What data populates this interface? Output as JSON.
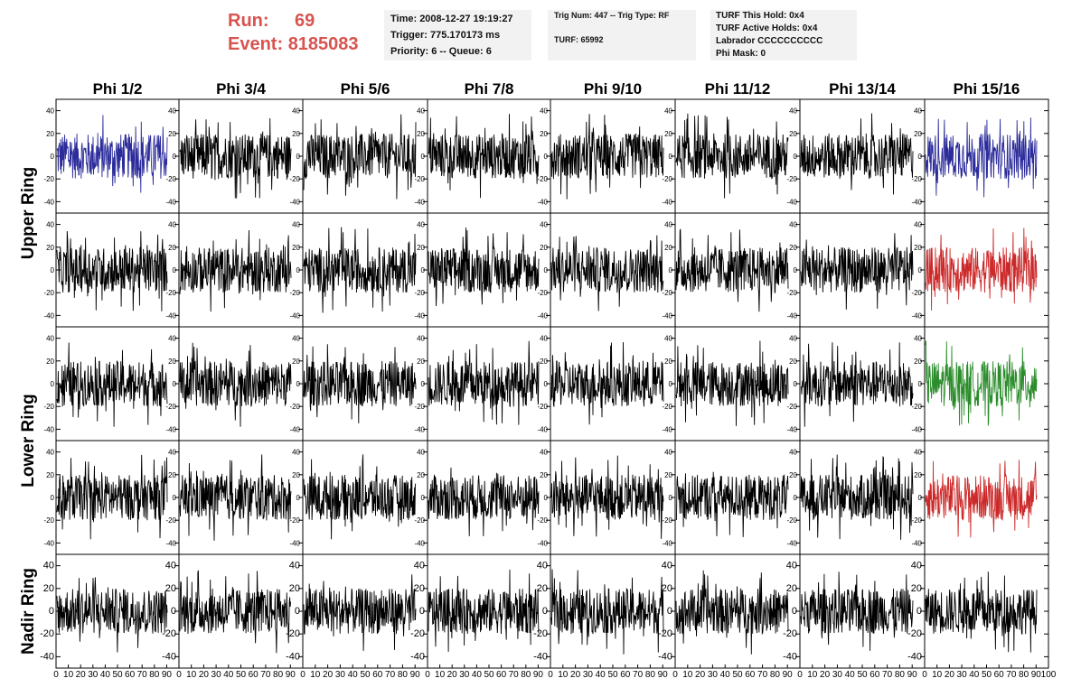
{
  "header": {
    "run_label": "Run:",
    "run_value": "69",
    "event_label": "Event:",
    "event_value": "8185083"
  },
  "info_time": {
    "time": "Time: 2008-12-27 19:19:27",
    "trigger": "Trigger: 775.170173 ms",
    "priority": "Priority: 6 -- Queue: 6"
  },
  "info_trig": {
    "trig": "Trig Num: 447 -- Trig Type: RF",
    "turf": "TURF: 65992"
  },
  "info_turf": {
    "hold": "TURF This Hold: 0x4",
    "active": "TURF Active Holds: 0x4",
    "labrador": "Labrador CCCCCCCCCC",
    "phi_mask": "Phi Mask: 0"
  },
  "chart_data": {
    "type": "line",
    "columns": [
      "Phi 1/2",
      "Phi 3/4",
      "Phi 5/6",
      "Phi 7/8",
      "Phi 9/10",
      "Phi 11/12",
      "Phi 13/14",
      "Phi 15/16"
    ],
    "ring_labels": [
      {
        "label": "Upper Ring",
        "rows": [
          0,
          1
        ]
      },
      {
        "label": "Lower Ring",
        "rows": [
          2,
          3
        ]
      },
      {
        "label": "Nadir Ring",
        "rows": [
          4
        ]
      }
    ],
    "rows": 5,
    "ylim": [
      -50,
      50
    ],
    "yticks": [
      -40,
      -20,
      0,
      20,
      40
    ],
    "xlim": [
      0,
      100
    ],
    "xticks": [
      0,
      10,
      20,
      30,
      40,
      50,
      60,
      70,
      80,
      90,
      100
    ],
    "samples_per_trace": 260,
    "trace_amplitude": 20,
    "highlighted_traces": [
      {
        "row": 0,
        "col": 0,
        "color": "#2b2b9b"
      },
      {
        "row": 0,
        "col": 7,
        "color": "#2b2b9b"
      },
      {
        "row": 1,
        "col": 7,
        "color": "#cc2a2a"
      },
      {
        "row": 2,
        "col": 7,
        "color": "#2a8c2a"
      },
      {
        "row": 3,
        "col": 7,
        "color": "#cc2a2a"
      }
    ],
    "default_trace_color": "#000000",
    "grid": false
  }
}
